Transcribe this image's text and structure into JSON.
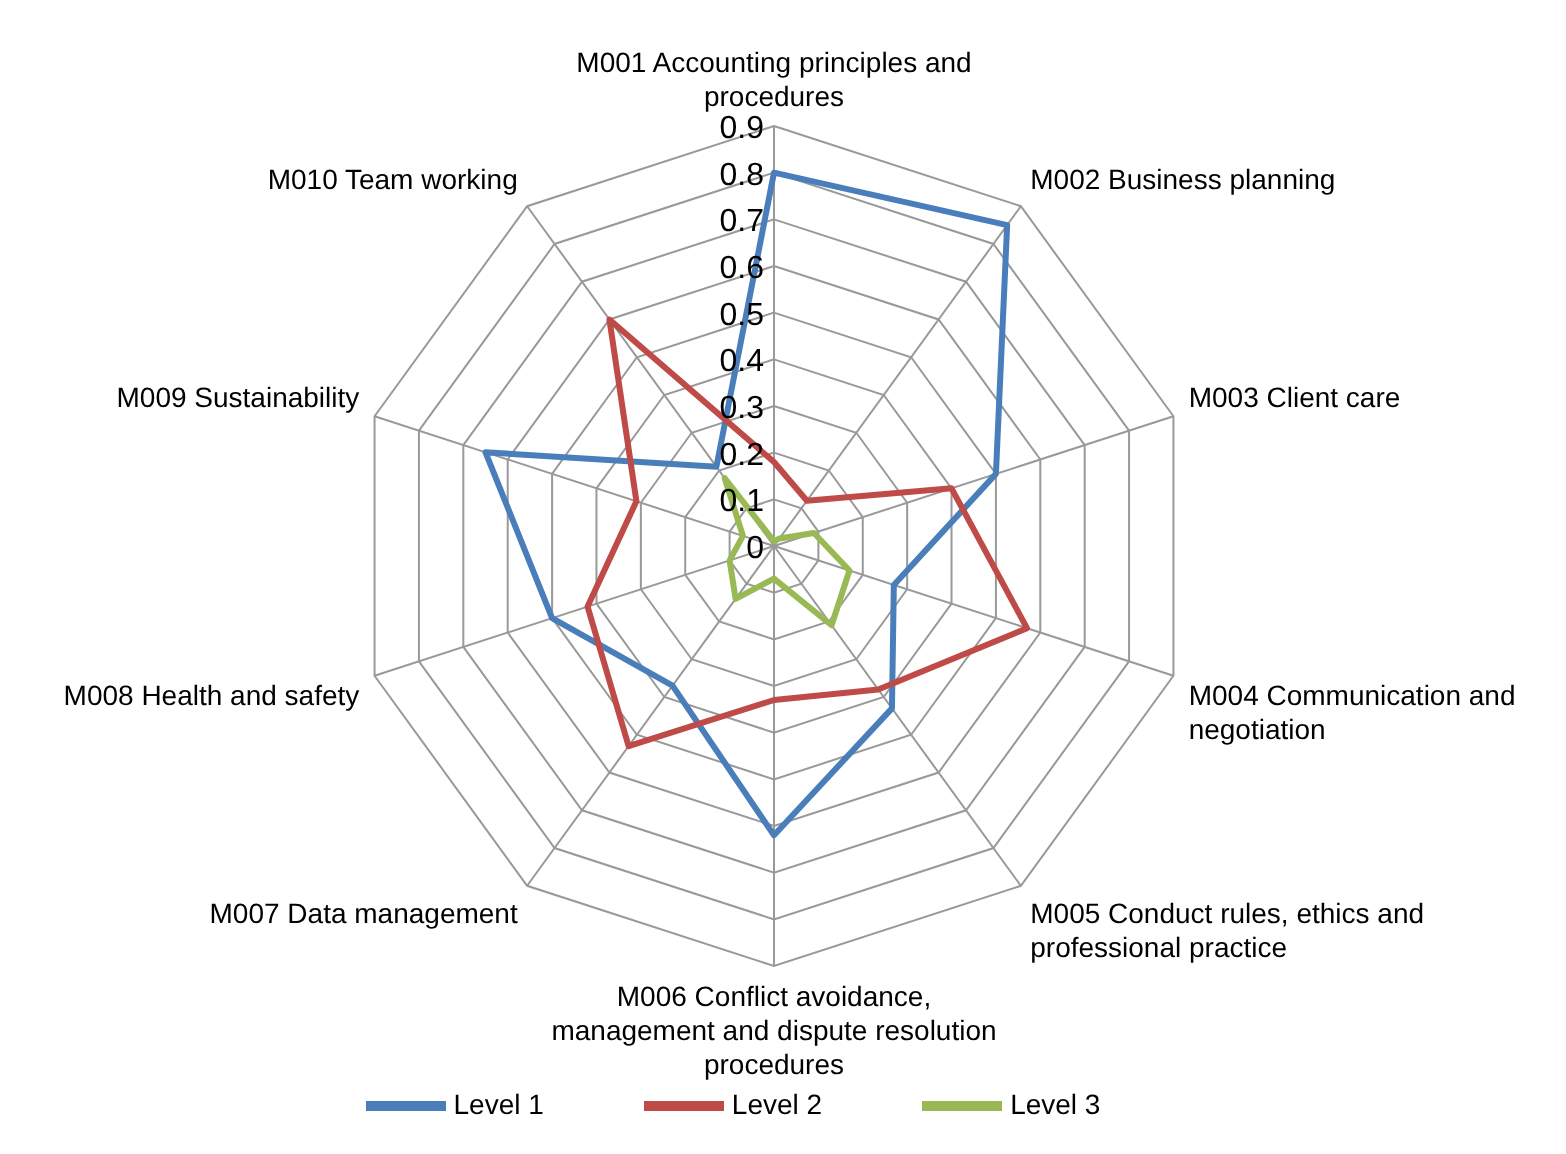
{
  "chart_data": {
    "type": "radar",
    "categories": [
      "M001 Accounting principles and procedures",
      "M002 Business planning",
      "M003 Client care",
      "M004 Communication and negotiation",
      "M005 Conduct rules, ethics and professional practice",
      "M006 Conflict avoidance, management and dispute resolution procedures",
      "M007 Data management",
      "M008 Health and safety",
      "M009 Sustainability",
      "M010 Team working"
    ],
    "series": [
      {
        "name": "Level 1",
        "color": "#4a7ebb",
        "values": [
          0.8,
          0.85,
          0.5,
          0.27,
          0.43,
          0.62,
          0.37,
          0.5,
          0.65,
          0.21
        ]
      },
      {
        "name": "Level 2",
        "color": "#be4b48",
        "values": [
          0.18,
          0.12,
          0.4,
          0.57,
          0.38,
          0.33,
          0.53,
          0.42,
          0.31,
          0.6
        ]
      },
      {
        "name": "Level 3",
        "color": "#98b954",
        "values": [
          0.01,
          0.02,
          0.09,
          0.17,
          0.21,
          0.07,
          0.14,
          0.1,
          0.07,
          0.18
        ]
      }
    ],
    "ylim": [
      0,
      0.9
    ],
    "yticks": [
      0,
      0.1,
      0.2,
      0.3,
      0.4,
      0.5,
      0.6,
      0.7,
      0.8,
      0.9
    ],
    "grid": true,
    "legend": "bottom",
    "marker": "none"
  }
}
